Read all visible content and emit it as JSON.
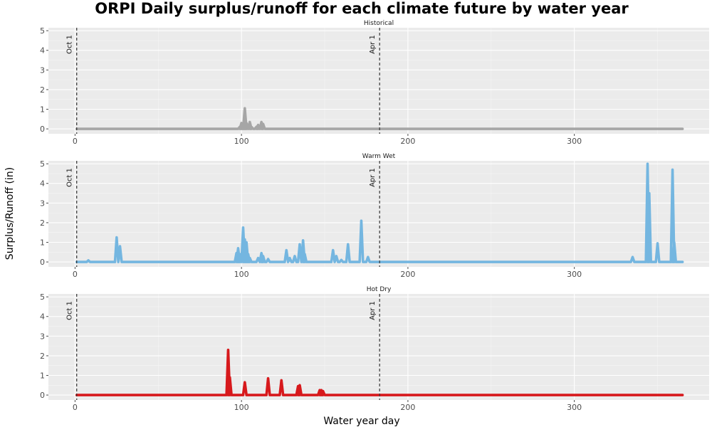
{
  "chart_data": {
    "type": "line",
    "title": "ORPI Daily surplus/runoff for each climate future by water year",
    "xlabel": "Water year day",
    "ylabel": "Surplus/Runoff (in)",
    "xlim": [
      -16,
      381
    ],
    "ylim": [
      -0.25,
      5.15
    ],
    "x_ticks": [
      0,
      100,
      200,
      300
    ],
    "y_ticks": [
      0,
      1,
      2,
      3,
      4,
      5
    ],
    "grid": true,
    "legend": "none",
    "vlines": [
      {
        "x": 1,
        "label": "Oct 1"
      },
      {
        "x": 183,
        "label": "Apr 1"
      }
    ],
    "panels": [
      {
        "name": "Historical",
        "color": "#a6a6a6",
        "x_range": [
          1,
          365
        ],
        "spikes": [
          [
            99,
            0.1
          ],
          [
            100,
            0.3
          ],
          [
            101,
            0.15
          ],
          [
            102,
            1.05
          ],
          [
            103,
            0.3
          ],
          [
            105,
            0.35
          ],
          [
            106,
            0.1
          ],
          [
            109,
            0.1
          ],
          [
            110,
            0.2
          ],
          [
            112,
            0.35
          ],
          [
            113,
            0.25
          ]
        ]
      },
      {
        "name": "Warm Wet",
        "color": "#74b6e0",
        "x_range": [
          1,
          365
        ],
        "spikes": [
          [
            8,
            0.08
          ],
          [
            25,
            1.25
          ],
          [
            27,
            0.8
          ],
          [
            97,
            0.45
          ],
          [
            98,
            0.7
          ],
          [
            99,
            0.4
          ],
          [
            101,
            1.75
          ],
          [
            102,
            1.15
          ],
          [
            103,
            1.0
          ],
          [
            104,
            0.4
          ],
          [
            105,
            0.2
          ],
          [
            110,
            0.2
          ],
          [
            112,
            0.45
          ],
          [
            113,
            0.3
          ],
          [
            116,
            0.15
          ],
          [
            127,
            0.6
          ],
          [
            129,
            0.2
          ],
          [
            132,
            0.3
          ],
          [
            135,
            0.9
          ],
          [
            137,
            1.1
          ],
          [
            138,
            0.4
          ],
          [
            155,
            0.6
          ],
          [
            157,
            0.3
          ],
          [
            160,
            0.1
          ],
          [
            164,
            0.9
          ],
          [
            172,
            2.1
          ],
          [
            176,
            0.25
          ],
          [
            335,
            0.25
          ],
          [
            344,
            5.0
          ],
          [
            345,
            3.5
          ],
          [
            350,
            0.95
          ],
          [
            359,
            4.7
          ],
          [
            360,
            1.0
          ]
        ]
      },
      {
        "name": "Hot Dry",
        "color": "#d7191c",
        "x_range": [
          1,
          365
        ],
        "spikes": [
          [
            92,
            2.3
          ],
          [
            93,
            0.9
          ],
          [
            102,
            0.65
          ],
          [
            116,
            0.85
          ],
          [
            124,
            0.75
          ],
          [
            134,
            0.45
          ],
          [
            135,
            0.5
          ],
          [
            147,
            0.25
          ],
          [
            148,
            0.25
          ],
          [
            149,
            0.2
          ]
        ]
      }
    ]
  }
}
